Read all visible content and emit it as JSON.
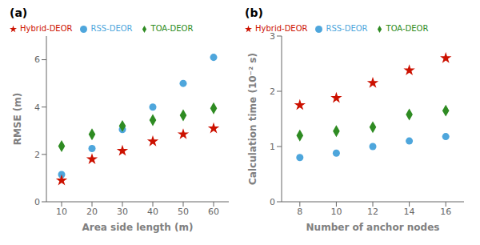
{
  "chart_data": [
    {
      "type": "scatter",
      "title": "(a)",
      "x_label": "Area side length (m)",
      "y_label": "RMSE (m)",
      "xlim": [
        5,
        65
      ],
      "ylim": [
        0,
        7
      ],
      "xticks": [
        10,
        20,
        30,
        40,
        50,
        60
      ],
      "yticks": [
        0,
        2,
        4,
        6
      ],
      "grid": false,
      "legend": "upper left",
      "x": [
        10,
        20,
        30,
        40,
        50,
        60
      ],
      "series": [
        {
          "name": "RSS-DEOR",
          "color": "#4EA6DC",
          "marker": "circle",
          "values": [
            1.15,
            2.25,
            3.05,
            4.0,
            5.0,
            6.1
          ]
        },
        {
          "name": "TOA-DEOR",
          "color": "#2E8B22",
          "marker": "diamond",
          "values": [
            2.35,
            2.85,
            3.2,
            3.45,
            3.65,
            3.95
          ]
        },
        {
          "name": "Hybrid-DEOR",
          "color": "#CC1100",
          "marker": "star",
          "values": [
            0.9,
            1.8,
            2.15,
            2.55,
            2.85,
            3.1
          ]
        }
      ]
    },
    {
      "type": "scatter",
      "title": "(b)",
      "x_label": "Number of anchor nodes",
      "y_label": "Calculation time (10⁻² s)",
      "xlim": [
        7,
        17
      ],
      "ylim": [
        0,
        3
      ],
      "xticks": [
        8,
        10,
        12,
        14,
        16
      ],
      "yticks": [
        0,
        1,
        2,
        3
      ],
      "grid": false,
      "legend": "upper left",
      "x": [
        8,
        10,
        12,
        14,
        16
      ],
      "series": [
        {
          "name": "RSS-DEOR",
          "color": "#4EA6DC",
          "marker": "circle",
          "values": [
            0.8,
            0.88,
            1.0,
            1.1,
            1.18
          ]
        },
        {
          "name": "TOA-DEOR",
          "color": "#2E8B22",
          "marker": "diamond",
          "values": [
            1.2,
            1.28,
            1.35,
            1.58,
            1.65
          ]
        },
        {
          "name": "Hybrid-DEOR",
          "color": "#CC1100",
          "marker": "star",
          "values": [
            1.75,
            1.88,
            2.15,
            2.38,
            2.6
          ]
        }
      ]
    }
  ]
}
